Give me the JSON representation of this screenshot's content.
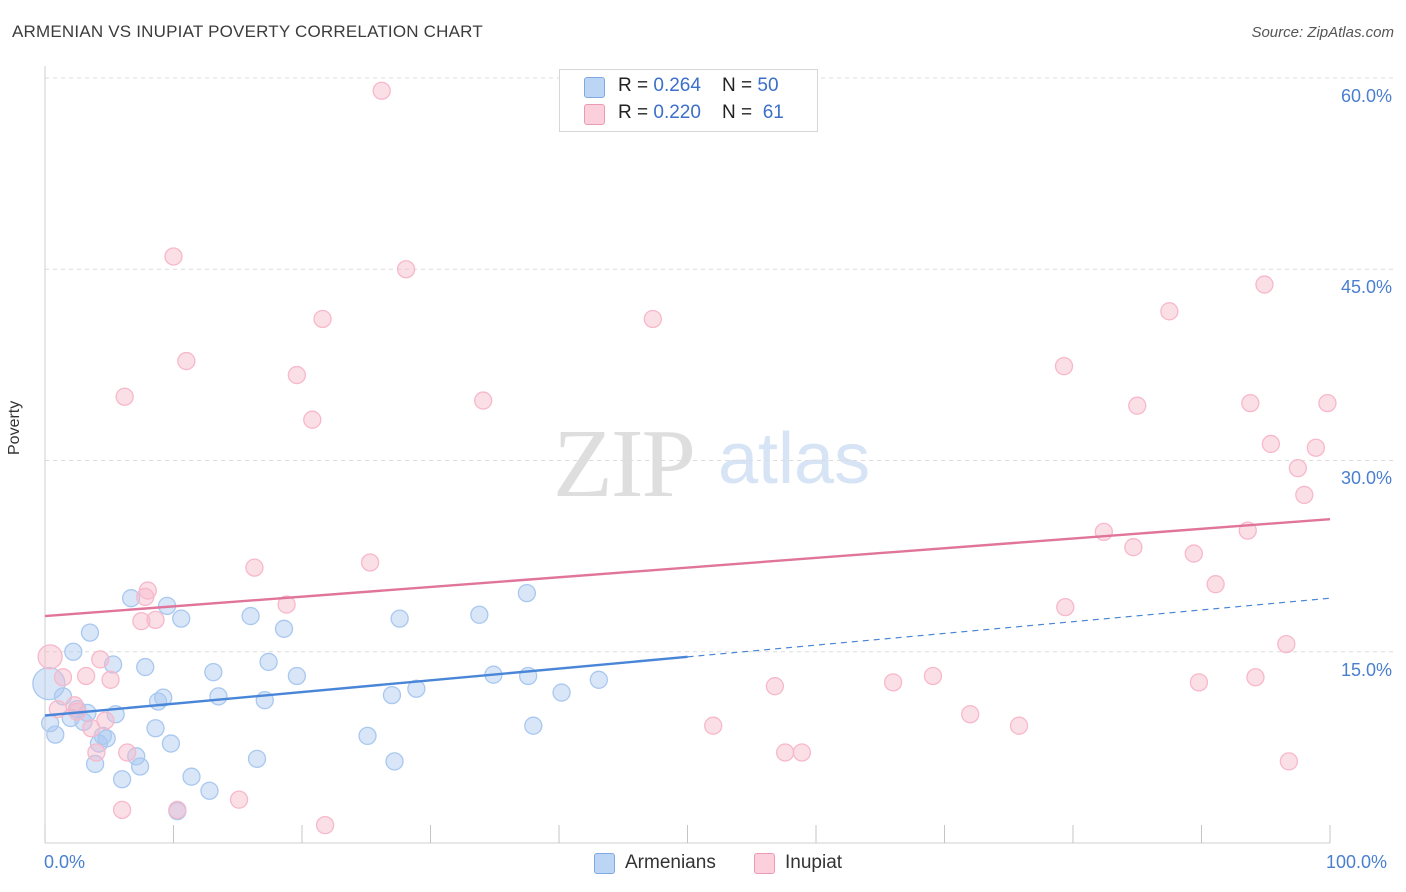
{
  "title": "ARMENIAN VS INUPIAT POVERTY CORRELATION CHART",
  "source": "Source: ZipAtlas.com",
  "watermark": {
    "zip": "ZIP",
    "atlas": "atlas"
  },
  "legend": {
    "rows": [
      {
        "r_label": "R = ",
        "r_value": "0.264",
        "n_label": "N = ",
        "n_value": "50",
        "color": "#a9c8f0"
      },
      {
        "r_label": "R = ",
        "r_value": "0.220",
        "n_label": "N = ",
        "n_value": "61",
        "color": "#f7b8ca"
      }
    ]
  },
  "bottom_legend": [
    {
      "label": "Armenians",
      "color": "#a9c8f0"
    },
    {
      "label": "Inupiat",
      "color": "#f7b8ca"
    }
  ],
  "chart_data": {
    "type": "scatter",
    "title": "ARMENIAN VS INUPIAT POVERTY CORRELATION CHART",
    "xlabel": "",
    "ylabel": "Poverty",
    "xlim": [
      0,
      100
    ],
    "ylim": [
      0,
      60
    ],
    "x_tick_labels": [
      "0.0%",
      "100.0%"
    ],
    "y_tick_labels": [
      "15.0%",
      "30.0%",
      "45.0%",
      "60.0%"
    ],
    "y_ticks": [
      15,
      30,
      45,
      60
    ],
    "grid": true,
    "series": [
      {
        "name": "Armenians",
        "color": "#4a86d8",
        "fill": "#a9c8f0",
        "trend": {
          "x": [
            0,
            50
          ],
          "y": [
            10.0,
            14.6
          ],
          "dash_to_x": 100,
          "dash_to_y": 19.2
        },
        "points": [
          [
            0.3,
            12.5
          ],
          [
            0.8,
            8.5
          ],
          [
            1.4,
            11.5
          ],
          [
            2.0,
            9.8
          ],
          [
            2.2,
            15.0
          ],
          [
            2.5,
            10.5
          ],
          [
            3.0,
            9.5
          ],
          [
            3.3,
            10.2
          ],
          [
            3.5,
            16.5
          ],
          [
            3.9,
            6.2
          ],
          [
            4.2,
            7.8
          ],
          [
            4.5,
            8.4
          ],
          [
            4.8,
            8.2
          ],
          [
            5.3,
            14.0
          ],
          [
            5.5,
            10.1
          ],
          [
            6.0,
            5.0
          ],
          [
            6.7,
            19.2
          ],
          [
            7.1,
            6.8
          ],
          [
            7.4,
            6.0
          ],
          [
            7.8,
            13.8
          ],
          [
            8.6,
            9.0
          ],
          [
            8.8,
            11.1
          ],
          [
            9.2,
            11.4
          ],
          [
            9.5,
            18.6
          ],
          [
            9.8,
            7.8
          ],
          [
            10.3,
            2.5
          ],
          [
            10.6,
            17.6
          ],
          [
            11.4,
            5.2
          ],
          [
            12.8,
            4.1
          ],
          [
            13.1,
            13.4
          ],
          [
            13.5,
            11.5
          ],
          [
            16.0,
            17.8
          ],
          [
            16.5,
            6.6
          ],
          [
            17.1,
            11.2
          ],
          [
            17.4,
            14.2
          ],
          [
            18.6,
            16.8
          ],
          [
            19.6,
            13.1
          ],
          [
            25.1,
            8.4
          ],
          [
            27.0,
            11.6
          ],
          [
            27.2,
            6.4
          ],
          [
            27.6,
            17.6
          ],
          [
            28.9,
            12.1
          ],
          [
            33.8,
            17.9
          ],
          [
            34.9,
            13.2
          ],
          [
            37.5,
            19.6
          ],
          [
            37.6,
            13.1
          ],
          [
            38.0,
            9.2
          ],
          [
            40.2,
            11.8
          ],
          [
            43.1,
            12.8
          ],
          [
            0.4,
            9.4
          ]
        ]
      },
      {
        "name": "Inupiat",
        "color": "#e0749a",
        "fill": "#f7b8ca",
        "trend": {
          "x": [
            0,
            100
          ],
          "y": [
            17.8,
            25.4
          ]
        },
        "points": [
          [
            0.4,
            14.6
          ],
          [
            1.0,
            10.5
          ],
          [
            2.3,
            10.8
          ],
          [
            2.5,
            10.3
          ],
          [
            3.2,
            13.1
          ],
          [
            3.6,
            9.0
          ],
          [
            4.0,
            7.1
          ],
          [
            4.3,
            14.4
          ],
          [
            4.7,
            9.6
          ],
          [
            5.1,
            12.8
          ],
          [
            6.0,
            2.6
          ],
          [
            6.2,
            35.0
          ],
          [
            6.4,
            7.1
          ],
          [
            7.5,
            17.4
          ],
          [
            7.8,
            19.3
          ],
          [
            8.0,
            19.8
          ],
          [
            8.6,
            17.5
          ],
          [
            10.0,
            46.0
          ],
          [
            10.3,
            2.6
          ],
          [
            11.0,
            37.8
          ],
          [
            15.1,
            3.4
          ],
          [
            16.3,
            21.6
          ],
          [
            18.8,
            18.7
          ],
          [
            19.6,
            36.7
          ],
          [
            20.8,
            33.2
          ],
          [
            21.6,
            41.1
          ],
          [
            21.8,
            1.4
          ],
          [
            25.3,
            22.0
          ],
          [
            26.2,
            59.0
          ],
          [
            28.1,
            45.0
          ],
          [
            34.1,
            34.7
          ],
          [
            47.3,
            41.1
          ],
          [
            52.0,
            9.2
          ],
          [
            56.8,
            12.3
          ],
          [
            57.6,
            7.1
          ],
          [
            58.9,
            7.1
          ],
          [
            66.0,
            12.6
          ],
          [
            69.1,
            13.1
          ],
          [
            72.0,
            10.1
          ],
          [
            75.8,
            9.2
          ],
          [
            79.3,
            37.4
          ],
          [
            79.4,
            18.5
          ],
          [
            82.4,
            24.4
          ],
          [
            84.7,
            23.2
          ],
          [
            85.0,
            34.3
          ],
          [
            87.5,
            41.7
          ],
          [
            89.4,
            22.7
          ],
          [
            89.8,
            12.6
          ],
          [
            91.1,
            20.3
          ],
          [
            93.6,
            24.5
          ],
          [
            93.8,
            34.5
          ],
          [
            94.2,
            13.0
          ],
          [
            94.9,
            43.8
          ],
          [
            95.4,
            31.3
          ],
          [
            96.6,
            15.6
          ],
          [
            96.8,
            6.4
          ],
          [
            97.5,
            29.4
          ],
          [
            98.0,
            27.3
          ],
          [
            98.9,
            31.0
          ],
          [
            99.8,
            34.5
          ],
          [
            1.4,
            13.0
          ]
        ]
      }
    ]
  }
}
